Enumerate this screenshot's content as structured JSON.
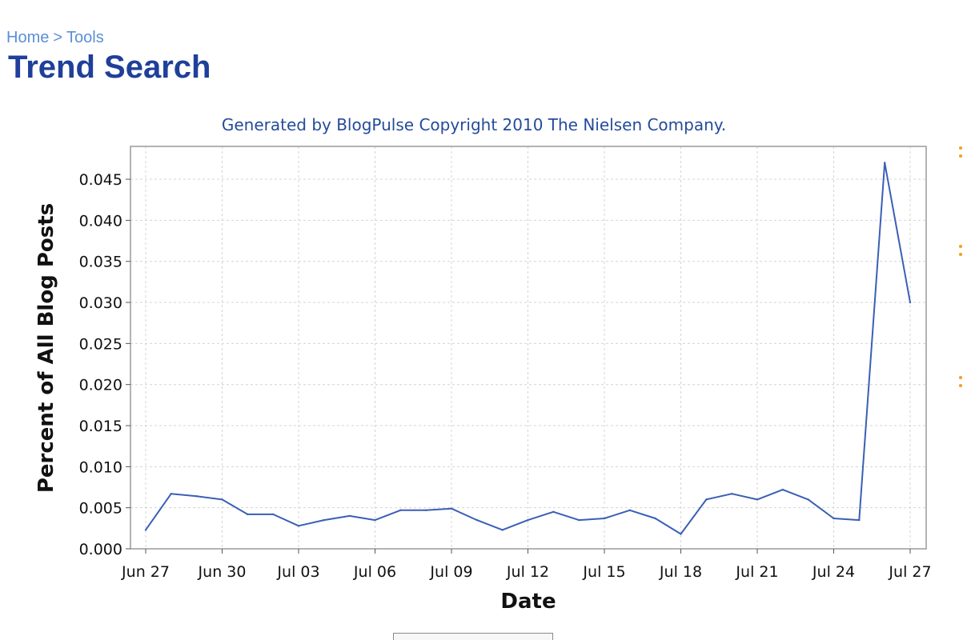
{
  "breadcrumb": {
    "home": "Home",
    "separator": ">",
    "tools": "Tools"
  },
  "page_title": "Trend Search",
  "chart_data": {
    "type": "line",
    "title": "Generated by BlogPulse Copyright 2010 The Nielsen Company.",
    "xlabel": "Date",
    "ylabel": "Percent of All Blog Posts",
    "ylim": [
      0,
      0.049
    ],
    "grid": true,
    "y_ticks": [
      "0.000",
      "0.005",
      "0.010",
      "0.015",
      "0.020",
      "0.025",
      "0.030",
      "0.035",
      "0.040",
      "0.045"
    ],
    "x_ticks": [
      "Jun 27",
      "Jun 30",
      "Jul 03",
      "Jul 06",
      "Jul 09",
      "Jul 12",
      "Jul 15",
      "Jul 18",
      "Jul 21",
      "Jul 24",
      "Jul 27"
    ],
    "x": [
      "Jun 27",
      "Jun 28",
      "Jun 29",
      "Jun 30",
      "Jul 01",
      "Jul 02",
      "Jul 03",
      "Jul 04",
      "Jul 05",
      "Jul 06",
      "Jul 07",
      "Jul 08",
      "Jul 09",
      "Jul 10",
      "Jul 11",
      "Jul 12",
      "Jul 13",
      "Jul 14",
      "Jul 15",
      "Jul 16",
      "Jul 17",
      "Jul 18",
      "Jul 19",
      "Jul 20",
      "Jul 21",
      "Jul 22",
      "Jul 23",
      "Jul 24",
      "Jul 25",
      "Jul 26",
      "Jul 27"
    ],
    "series": [
      {
        "color": "#3a5fb5",
        "values": [
          0.0023,
          0.0067,
          0.0064,
          0.006,
          0.0042,
          0.0042,
          0.0028,
          0.0035,
          0.004,
          0.0035,
          0.0047,
          0.0047,
          0.0049,
          0.0035,
          0.0023,
          0.0035,
          0.0045,
          0.0035,
          0.0037,
          0.0047,
          0.0037,
          0.0018,
          0.006,
          0.0067,
          0.006,
          0.0072,
          0.006,
          0.0037,
          0.0035,
          0.047,
          0.03
        ]
      }
    ]
  }
}
